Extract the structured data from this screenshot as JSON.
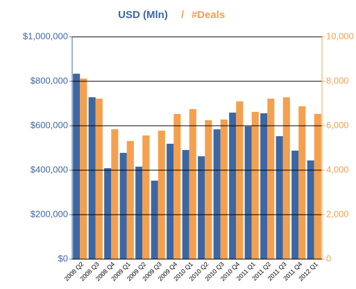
{
  "chart_data": {
    "type": "bar",
    "legend_separator": "/",
    "categories": [
      "2008 Q2",
      "2008 Q3",
      "2008 Q4",
      "2009 Q1",
      "2009 Q2",
      "2009 Q3",
      "2009 Q4",
      "2010 Q1",
      "2010 Q2",
      "2010 Q3",
      "2010 Q4",
      "2011 Q1",
      "2011 Q2",
      "2011 Q3",
      "2011 Q4",
      "2012 Q1"
    ],
    "series": [
      {
        "name": "USD (Mln)",
        "color": "#3d67a3",
        "axis": "y",
        "values": [
          834000,
          728000,
          409000,
          478000,
          416000,
          353000,
          519000,
          491000,
          463000,
          584000,
          659000,
          597000,
          656000,
          553000,
          488000,
          444000
        ]
      },
      {
        "name": "#Deals",
        "color": "#f5a04e",
        "axis": "y2",
        "values": [
          8125,
          7220,
          5845,
          5315,
          5565,
          5780,
          6530,
          6750,
          6250,
          6280,
          7095,
          6625,
          7220,
          7280,
          6875,
          6530
        ]
      }
    ],
    "ylim": [
      0,
      1000000
    ],
    "yticks": [
      {
        "value": 0,
        "label": "$0"
      },
      {
        "value": 200000,
        "label": "$200,000"
      },
      {
        "value": 400000,
        "label": "$400,000"
      },
      {
        "value": 600000,
        "label": "$600,000"
      },
      {
        "value": 800000,
        "label": "$800,000"
      },
      {
        "value": 1000000,
        "label": "$1,000,000"
      }
    ],
    "y2lim": [
      0,
      10000
    ],
    "y2ticks": [
      0,
      {
        "value": 2000,
        "label": "2,000"
      },
      {
        "value": 4000,
        "label": "4,000"
      },
      {
        "value": 6000,
        "label": "6,000"
      },
      {
        "value": 8000,
        "label": "8,000"
      },
      {
        "value": 10000,
        "label": "10,000"
      }
    ],
    "grid": true
  }
}
